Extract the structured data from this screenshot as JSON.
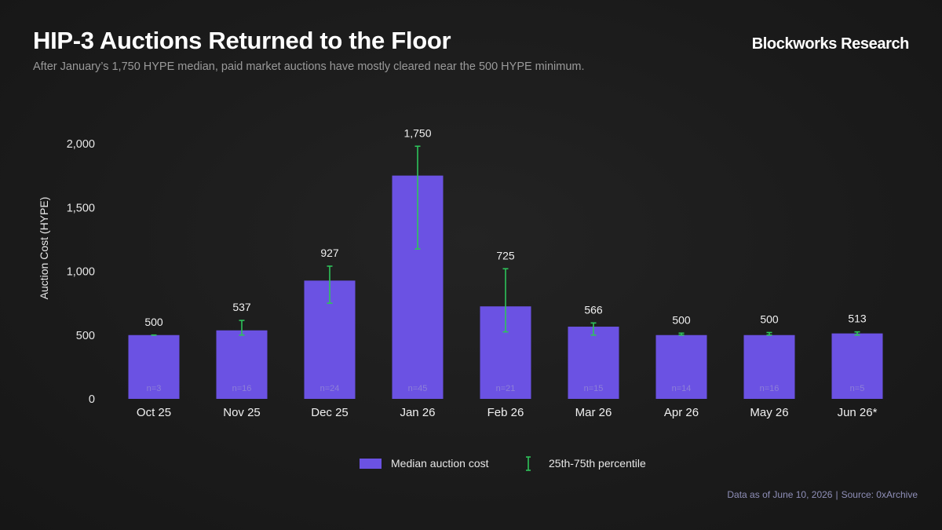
{
  "header": {
    "title": "HIP-3 Auctions Returned to the Floor",
    "subtitle": "After January’s 1,750 HYPE median, paid market auctions have mostly cleared near the 500 HYPE minimum.",
    "brand": "Blockworks Research"
  },
  "footer": {
    "date_text": "Data as of June 10, 2026",
    "source_text": "Source: 0xArchive"
  },
  "colors": {
    "bar": "#6b52e3",
    "errorbar": "#2ec35a",
    "n_label": "#8e80d8"
  },
  "chart_data": {
    "type": "bar",
    "title": "HIP-3 Auctions Returned to the Floor",
    "ylabel": "Auction Cost (HYPE)",
    "xlabel": "",
    "ylim": [
      0,
      2000
    ],
    "yticks": [
      0,
      500,
      1000,
      1500,
      2000
    ],
    "ytick_labels": [
      "0",
      "500",
      "1,000",
      "1,500",
      "2,000"
    ],
    "grid": false,
    "legend_position": "bottom-center",
    "categories": [
      "Oct 25",
      "Nov 25",
      "Dec 25",
      "Jan 26",
      "Feb 26",
      "Mar 26",
      "Apr 26",
      "May 26",
      "Jun 26*"
    ],
    "series": [
      {
        "name": "Median auction cost",
        "values": [
          500,
          537,
          927,
          1750,
          725,
          566,
          500,
          500,
          513
        ],
        "labels": [
          "500",
          "537",
          "927",
          "1,750",
          "725",
          "566",
          "500",
          "500",
          "513"
        ]
      }
    ],
    "percentile_range": {
      "name": "25th-75th percentile",
      "low": [
        500,
        500,
        750,
        1175,
        525,
        500,
        500,
        500,
        500
      ],
      "high": [
        500,
        615,
        1040,
        1980,
        1020,
        595,
        515,
        520,
        525
      ]
    },
    "n_labels": [
      "n=3",
      "n=16",
      "n=24",
      "n=45",
      "n=21",
      "n=15",
      "n=14",
      "n=16",
      "n=5"
    ]
  }
}
